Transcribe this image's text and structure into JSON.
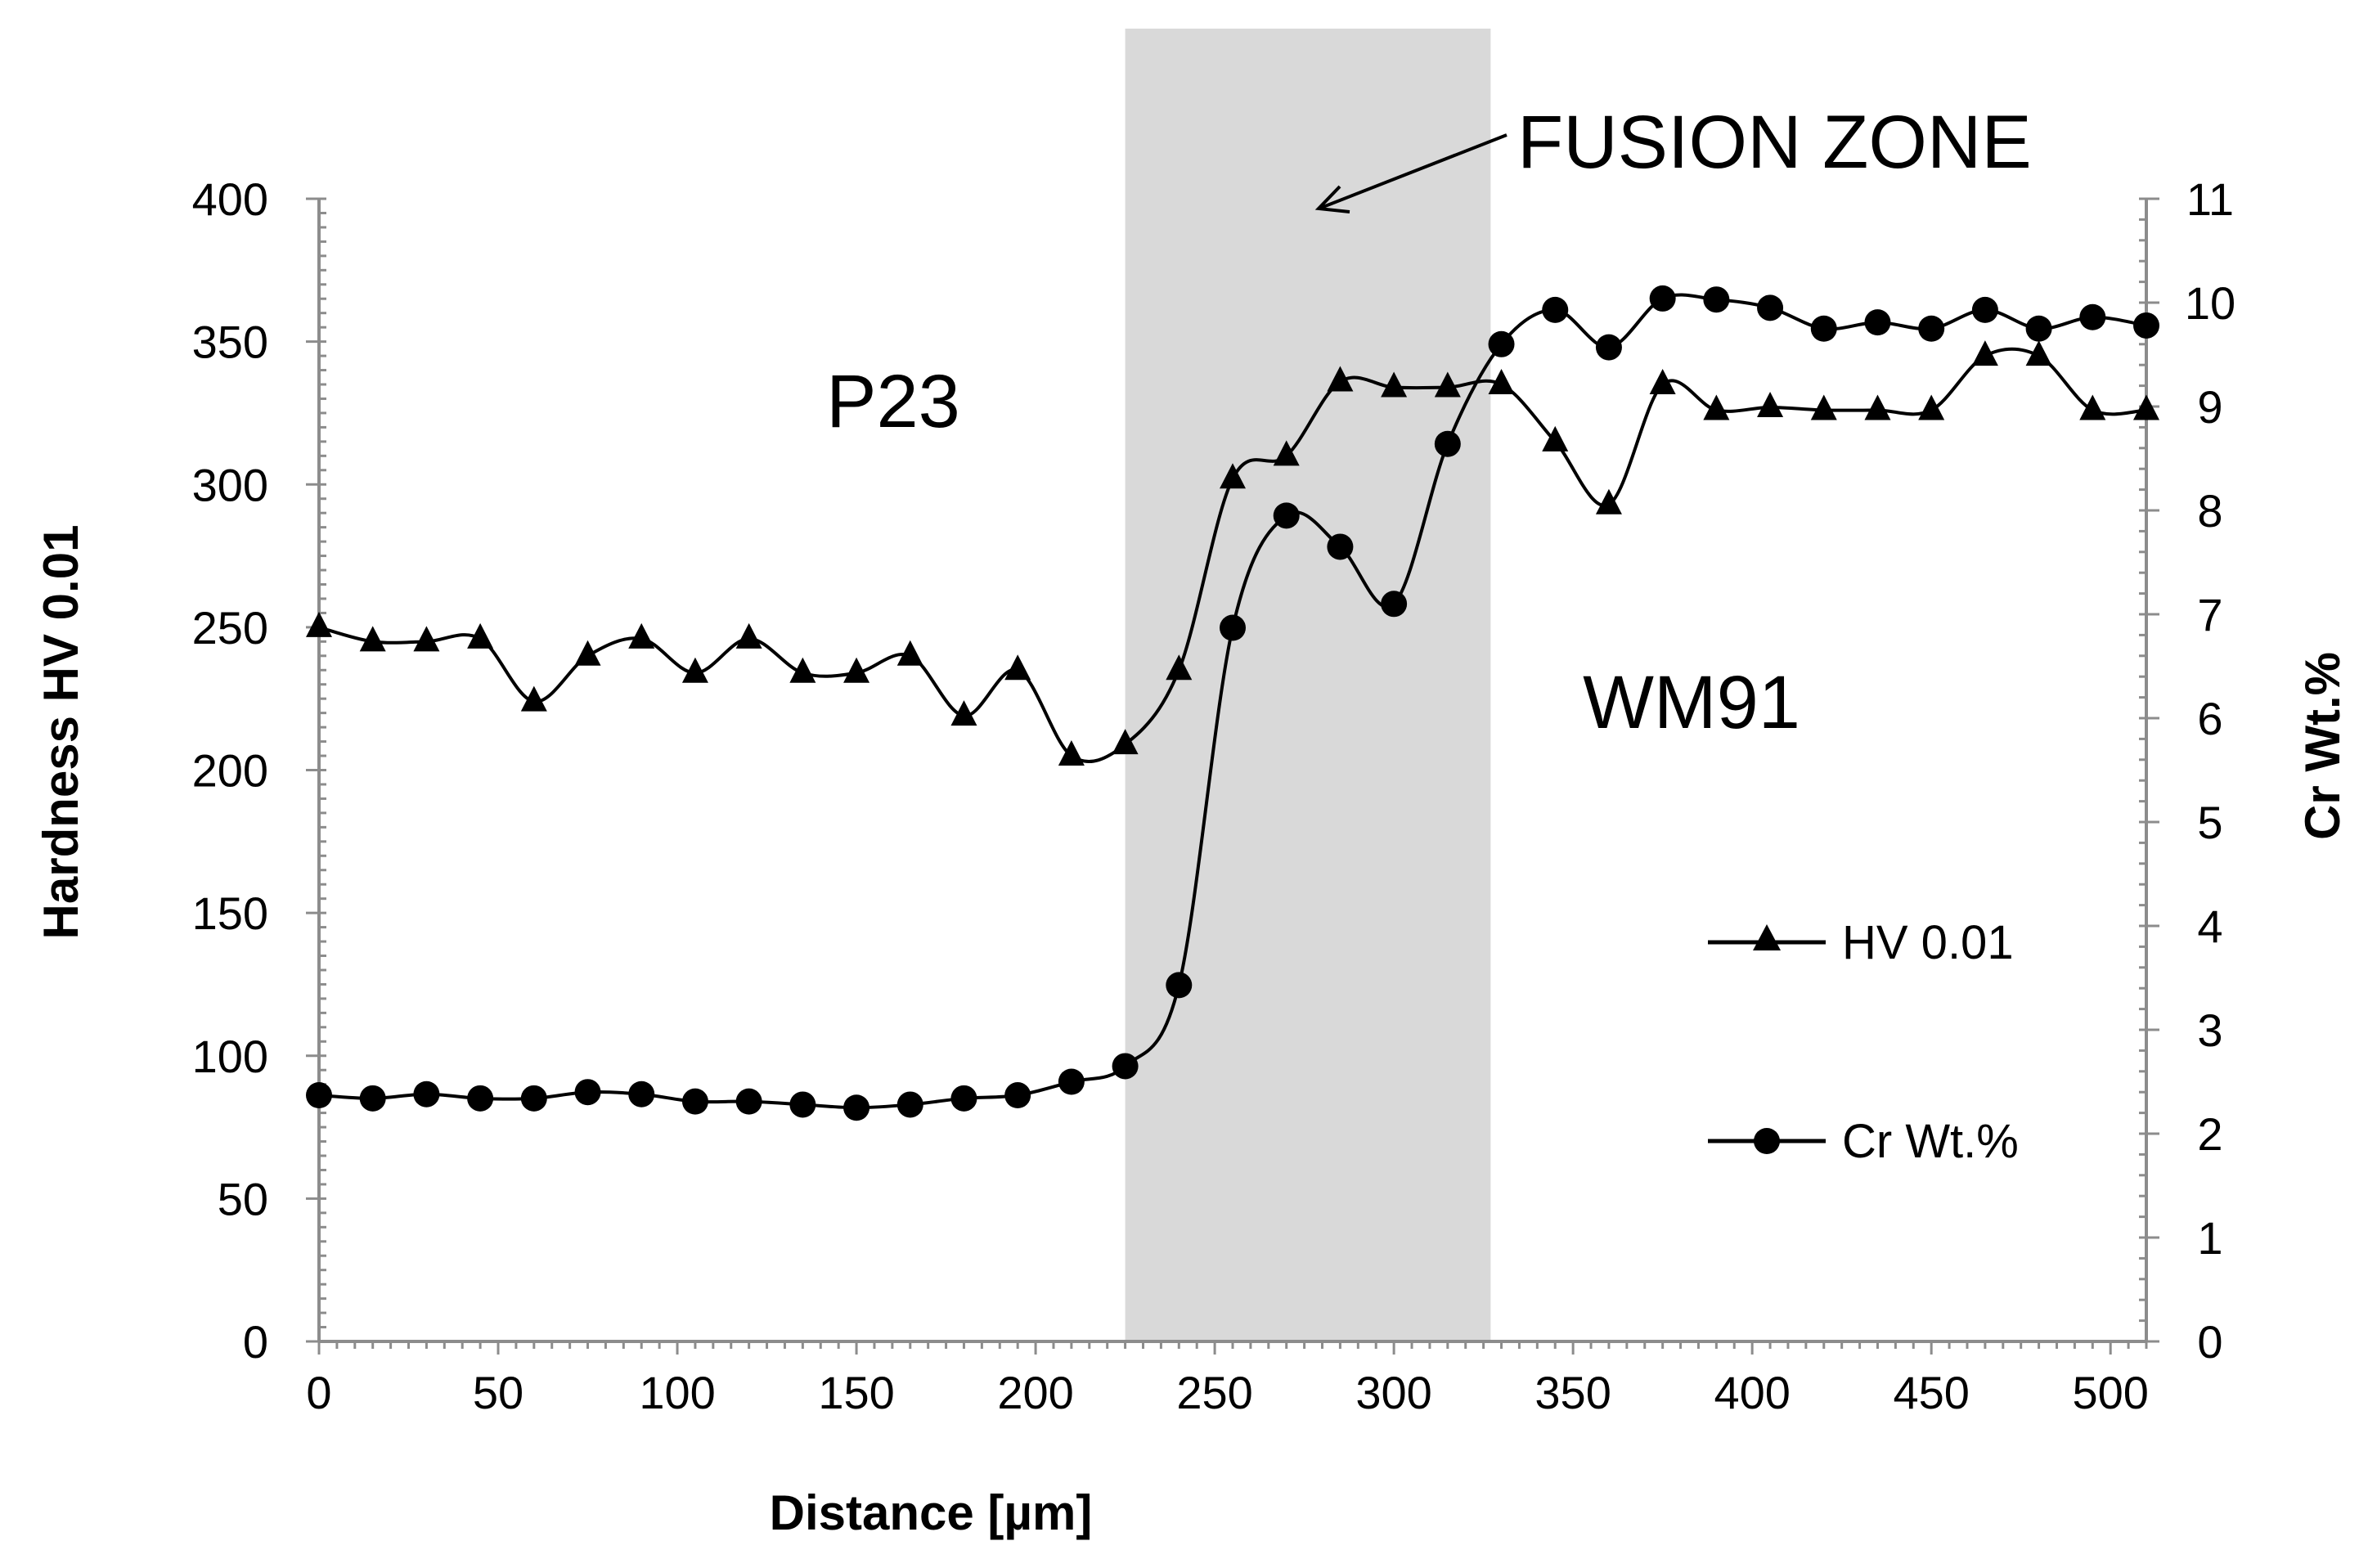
{
  "chart_data": {
    "type": "line",
    "title": "",
    "xlabel": "Distance [µm]",
    "ylabel": "Hardness HV 0.01",
    "y2label": "Cr Wt.%",
    "xlim": [
      0,
      510
    ],
    "ylim": [
      0,
      400
    ],
    "y2lim": [
      0,
      11
    ],
    "x_ticks": [
      "0",
      "50",
      "100",
      "150",
      "200",
      "250",
      "300",
      "350",
      "400",
      "450",
      "500"
    ],
    "y_ticks": [
      "0",
      "50",
      "100",
      "150",
      "200",
      "250",
      "300",
      "350",
      "400"
    ],
    "y2_ticks": [
      "0",
      "1",
      "2",
      "3",
      "4",
      "5",
      "6",
      "7",
      "8",
      "9",
      "10",
      "11"
    ],
    "fusion_zone": {
      "x_start": 225,
      "x_end": 327,
      "color": "#d9d9d9"
    },
    "series": [
      {
        "name": "HV 0.01",
        "marker": "triangle",
        "axis": "left",
        "x": [
          0,
          15,
          30,
          45,
          60,
          75,
          90,
          105,
          120,
          135,
          150,
          165,
          180,
          195,
          210,
          225,
          240,
          255,
          270,
          285,
          300,
          315,
          330,
          345,
          360,
          375,
          390,
          405,
          420,
          435,
          450,
          465,
          480,
          495,
          510
        ],
        "values": [
          250,
          245,
          245,
          246,
          224,
          240,
          246,
          234,
          246,
          234,
          234,
          240,
          219,
          235,
          205,
          209,
          235,
          302,
          310,
          336,
          334,
          334,
          335,
          315,
          293,
          335,
          326,
          327,
          326,
          326,
          326,
          345,
          345,
          326,
          326
        ]
      },
      {
        "name": "Cr Wt.%",
        "marker": "circle",
        "axis": "right",
        "x": [
          0,
          15,
          30,
          45,
          60,
          75,
          90,
          105,
          120,
          135,
          150,
          165,
          180,
          195,
          210,
          225,
          240,
          255,
          270,
          285,
          300,
          315,
          330,
          345,
          360,
          375,
          390,
          405,
          420,
          435,
          450,
          465,
          480,
          495,
          510
        ],
        "values": [
          2.37,
          2.34,
          2.38,
          2.34,
          2.34,
          2.4,
          2.38,
          2.31,
          2.31,
          2.28,
          2.25,
          2.28,
          2.34,
          2.37,
          2.5,
          2.65,
          3.43,
          6.87,
          7.95,
          7.65,
          7.1,
          8.64,
          9.6,
          9.93,
          9.57,
          10.04,
          10.03,
          9.95,
          9.75,
          9.81,
          9.75,
          9.93,
          9.75,
          9.86,
          9.78
        ]
      }
    ],
    "annotations": [
      {
        "text": "P23"
      },
      {
        "text": "WM91"
      },
      {
        "text": "FUSION ZONE"
      }
    ],
    "legend": [
      "HV 0.01",
      "Cr Wt.%"
    ],
    "legend_position": "right"
  }
}
